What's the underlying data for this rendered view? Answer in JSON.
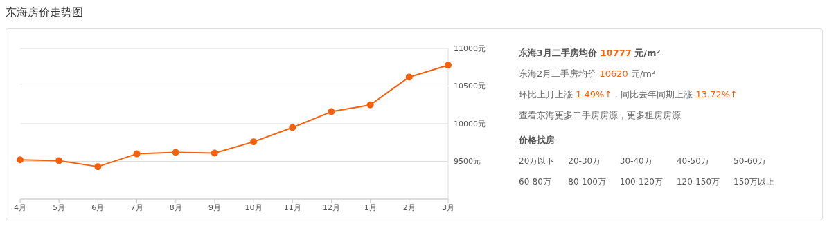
{
  "chart_data": {
    "type": "line",
    "title": "东海房价走势图",
    "categories": [
      "4月",
      "5月",
      "6月",
      "7月",
      "8月",
      "9月",
      "10月",
      "11月",
      "12月",
      "1月",
      "2月",
      "3月"
    ],
    "values": [
      9520,
      9510,
      9430,
      9600,
      9620,
      9610,
      9760,
      9950,
      10160,
      10250,
      10620,
      10777
    ],
    "color": "#f4600c",
    "marker": "circle",
    "grid": "y",
    "ylim": [
      9000,
      11000
    ],
    "yticks": [
      {
        "value": 9000,
        "label": null
      },
      {
        "value": 9500,
        "label": "9500元"
      },
      {
        "value": 10000,
        "label": "10000元"
      },
      {
        "value": 10500,
        "label": "10500元"
      },
      {
        "value": 11000,
        "label": "11000元"
      }
    ],
    "annotations": [
      "东海3月二手房均价 10777 元/m²",
      "东海2月二手房均价 10620 元/m²",
      "环比上月上涨 1.49%↑，同比去年同期上涨 13.72%↑",
      "查看东海更多二手房房源，更多租房房源",
      "价格找房",
      "20万以下",
      "20-30万",
      "30-40万",
      "40-50万",
      "50-60万",
      "60-80万",
      "80-100万",
      "100-120万",
      "120-150万",
      "150万以上"
    ]
  }
}
